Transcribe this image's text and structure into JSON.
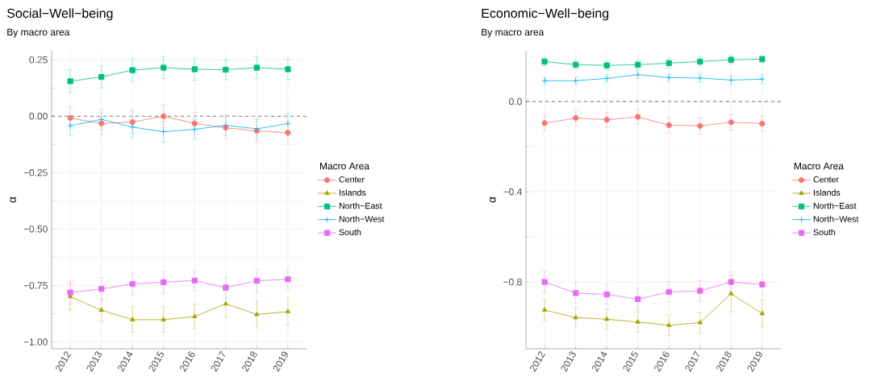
{
  "chart_data": [
    {
      "type": "line",
      "title": "Social−Well−being",
      "subtitle": "By macro area",
      "ylabel": "α",
      "legend_title": "Macro Area",
      "legend": "right",
      "grid": true,
      "line_style": "solid",
      "categories": [
        "2012",
        "2013",
        "2014",
        "2015",
        "2016",
        "2017",
        "2018",
        "2019"
      ],
      "ylim": [
        -1.03,
        0.29
      ],
      "yticks": [
        {
          "value": -1,
          "label": "−1.00"
        },
        {
          "value": -0.75,
          "label": "−0.75"
        },
        {
          "value": -0.5,
          "label": "−0.50"
        },
        {
          "value": -0.25,
          "label": "−0.25"
        },
        {
          "value": 0,
          "label": "0.00"
        },
        {
          "value": 0.25,
          "label": "0.25"
        }
      ],
      "ref_lines": [
        {
          "axis": "y",
          "value": 0,
          "line_style": "dashed",
          "color": "#000000"
        }
      ],
      "series": [
        {
          "name": "Center",
          "color": "#f8766d",
          "marker": "circle",
          "values": [
            -0.008,
            -0.032,
            -0.026,
            0.0,
            -0.032,
            -0.051,
            -0.065,
            -0.073
          ],
          "errors": [
            0.05,
            0.05,
            0.05,
            0.05,
            0.05,
            0.05,
            0.05,
            0.05
          ]
        },
        {
          "name": "Islands",
          "color": "#a3a500",
          "marker": "triangle",
          "values": [
            -0.799,
            -0.859,
            -0.901,
            -0.901,
            -0.887,
            -0.831,
            -0.878,
            -0.865
          ],
          "errors": [
            0.06,
            0.05,
            0.055,
            0.055,
            0.055,
            0.06,
            0.06,
            0.06
          ]
        },
        {
          "name": "North−East",
          "color": "#00bf7d",
          "marker": "square",
          "values": [
            0.155,
            0.174,
            0.204,
            0.215,
            0.208,
            0.206,
            0.215,
            0.208
          ],
          "errors": [
            0.05,
            0.048,
            0.05,
            0.048,
            0.05,
            0.045,
            0.048,
            0.045
          ]
        },
        {
          "name": "North−West",
          "color": "#00b0f6",
          "marker": "cross",
          "values": [
            -0.042,
            -0.014,
            -0.048,
            -0.069,
            -0.058,
            -0.04,
            -0.056,
            -0.033
          ],
          "errors": [
            0.045,
            0.045,
            0.045,
            0.045,
            0.045,
            0.045,
            0.045,
            0.045
          ]
        },
        {
          "name": "South",
          "color": "#e76bf3",
          "marker": "square",
          "values": [
            -0.781,
            -0.765,
            -0.743,
            -0.735,
            -0.728,
            -0.759,
            -0.729,
            -0.722
          ],
          "errors": [
            0.05,
            0.05,
            0.048,
            0.048,
            0.045,
            0.047,
            0.052,
            0.047
          ]
        }
      ]
    },
    {
      "type": "line",
      "title": "Economic−Well−being",
      "subtitle": "By macro area",
      "ylabel": "α",
      "legend_title": "Macro Area",
      "legend": "right",
      "grid": true,
      "line_style": "solid",
      "categories": [
        "2012",
        "2013",
        "2014",
        "2015",
        "2016",
        "2017",
        "2018",
        "2019"
      ],
      "ylim": [
        -1.096,
        0.225
      ],
      "yticks": [
        {
          "value": -0.8,
          "label": "−0.8"
        },
        {
          "value": -0.4,
          "label": "−0.4"
        },
        {
          "value": 0,
          "label": "0.0"
        }
      ],
      "ref_lines": [
        {
          "axis": "y",
          "value": 0,
          "line_style": "dashed",
          "color": "#000000"
        }
      ],
      "series": [
        {
          "name": "Center",
          "color": "#f8766d",
          "marker": "circle",
          "values": [
            -0.096,
            -0.073,
            -0.081,
            -0.068,
            -0.105,
            -0.108,
            -0.092,
            -0.098
          ],
          "errors": [
            0.035,
            0.033,
            0.033,
            0.033,
            0.035,
            0.035,
            0.035,
            0.035
          ]
        },
        {
          "name": "Islands",
          "color": "#a3a500",
          "marker": "triangle",
          "values": [
            -0.924,
            -0.958,
            -0.965,
            -0.977,
            -0.992,
            -0.98,
            -0.852,
            -0.94
          ],
          "errors": [
            0.046,
            0.045,
            0.045,
            0.045,
            0.045,
            0.045,
            0.08,
            0.06
          ]
        },
        {
          "name": "North−East",
          "color": "#00bf7d",
          "marker": "square",
          "values": [
            0.177,
            0.163,
            0.16,
            0.163,
            0.17,
            0.177,
            0.185,
            0.188
          ],
          "errors": [
            0.018,
            0.02,
            0.02,
            0.02,
            0.02,
            0.02,
            0.018,
            0.015
          ]
        },
        {
          "name": "North−West",
          "color": "#00b0f6",
          "marker": "cross",
          "values": [
            0.092,
            0.092,
            0.102,
            0.119,
            0.106,
            0.104,
            0.095,
            0.099
          ],
          "errors": [
            0.017,
            0.017,
            0.017,
            0.017,
            0.017,
            0.02,
            0.02,
            0.02
          ]
        },
        {
          "name": "South",
          "color": "#e76bf3",
          "marker": "square",
          "values": [
            -0.8,
            -0.849,
            -0.855,
            -0.876,
            -0.844,
            -0.839,
            -0.8,
            -0.811
          ],
          "errors": [
            0.048,
            0.045,
            0.045,
            0.048,
            0.045,
            0.045,
            0.045,
            0.045
          ]
        }
      ]
    }
  ]
}
